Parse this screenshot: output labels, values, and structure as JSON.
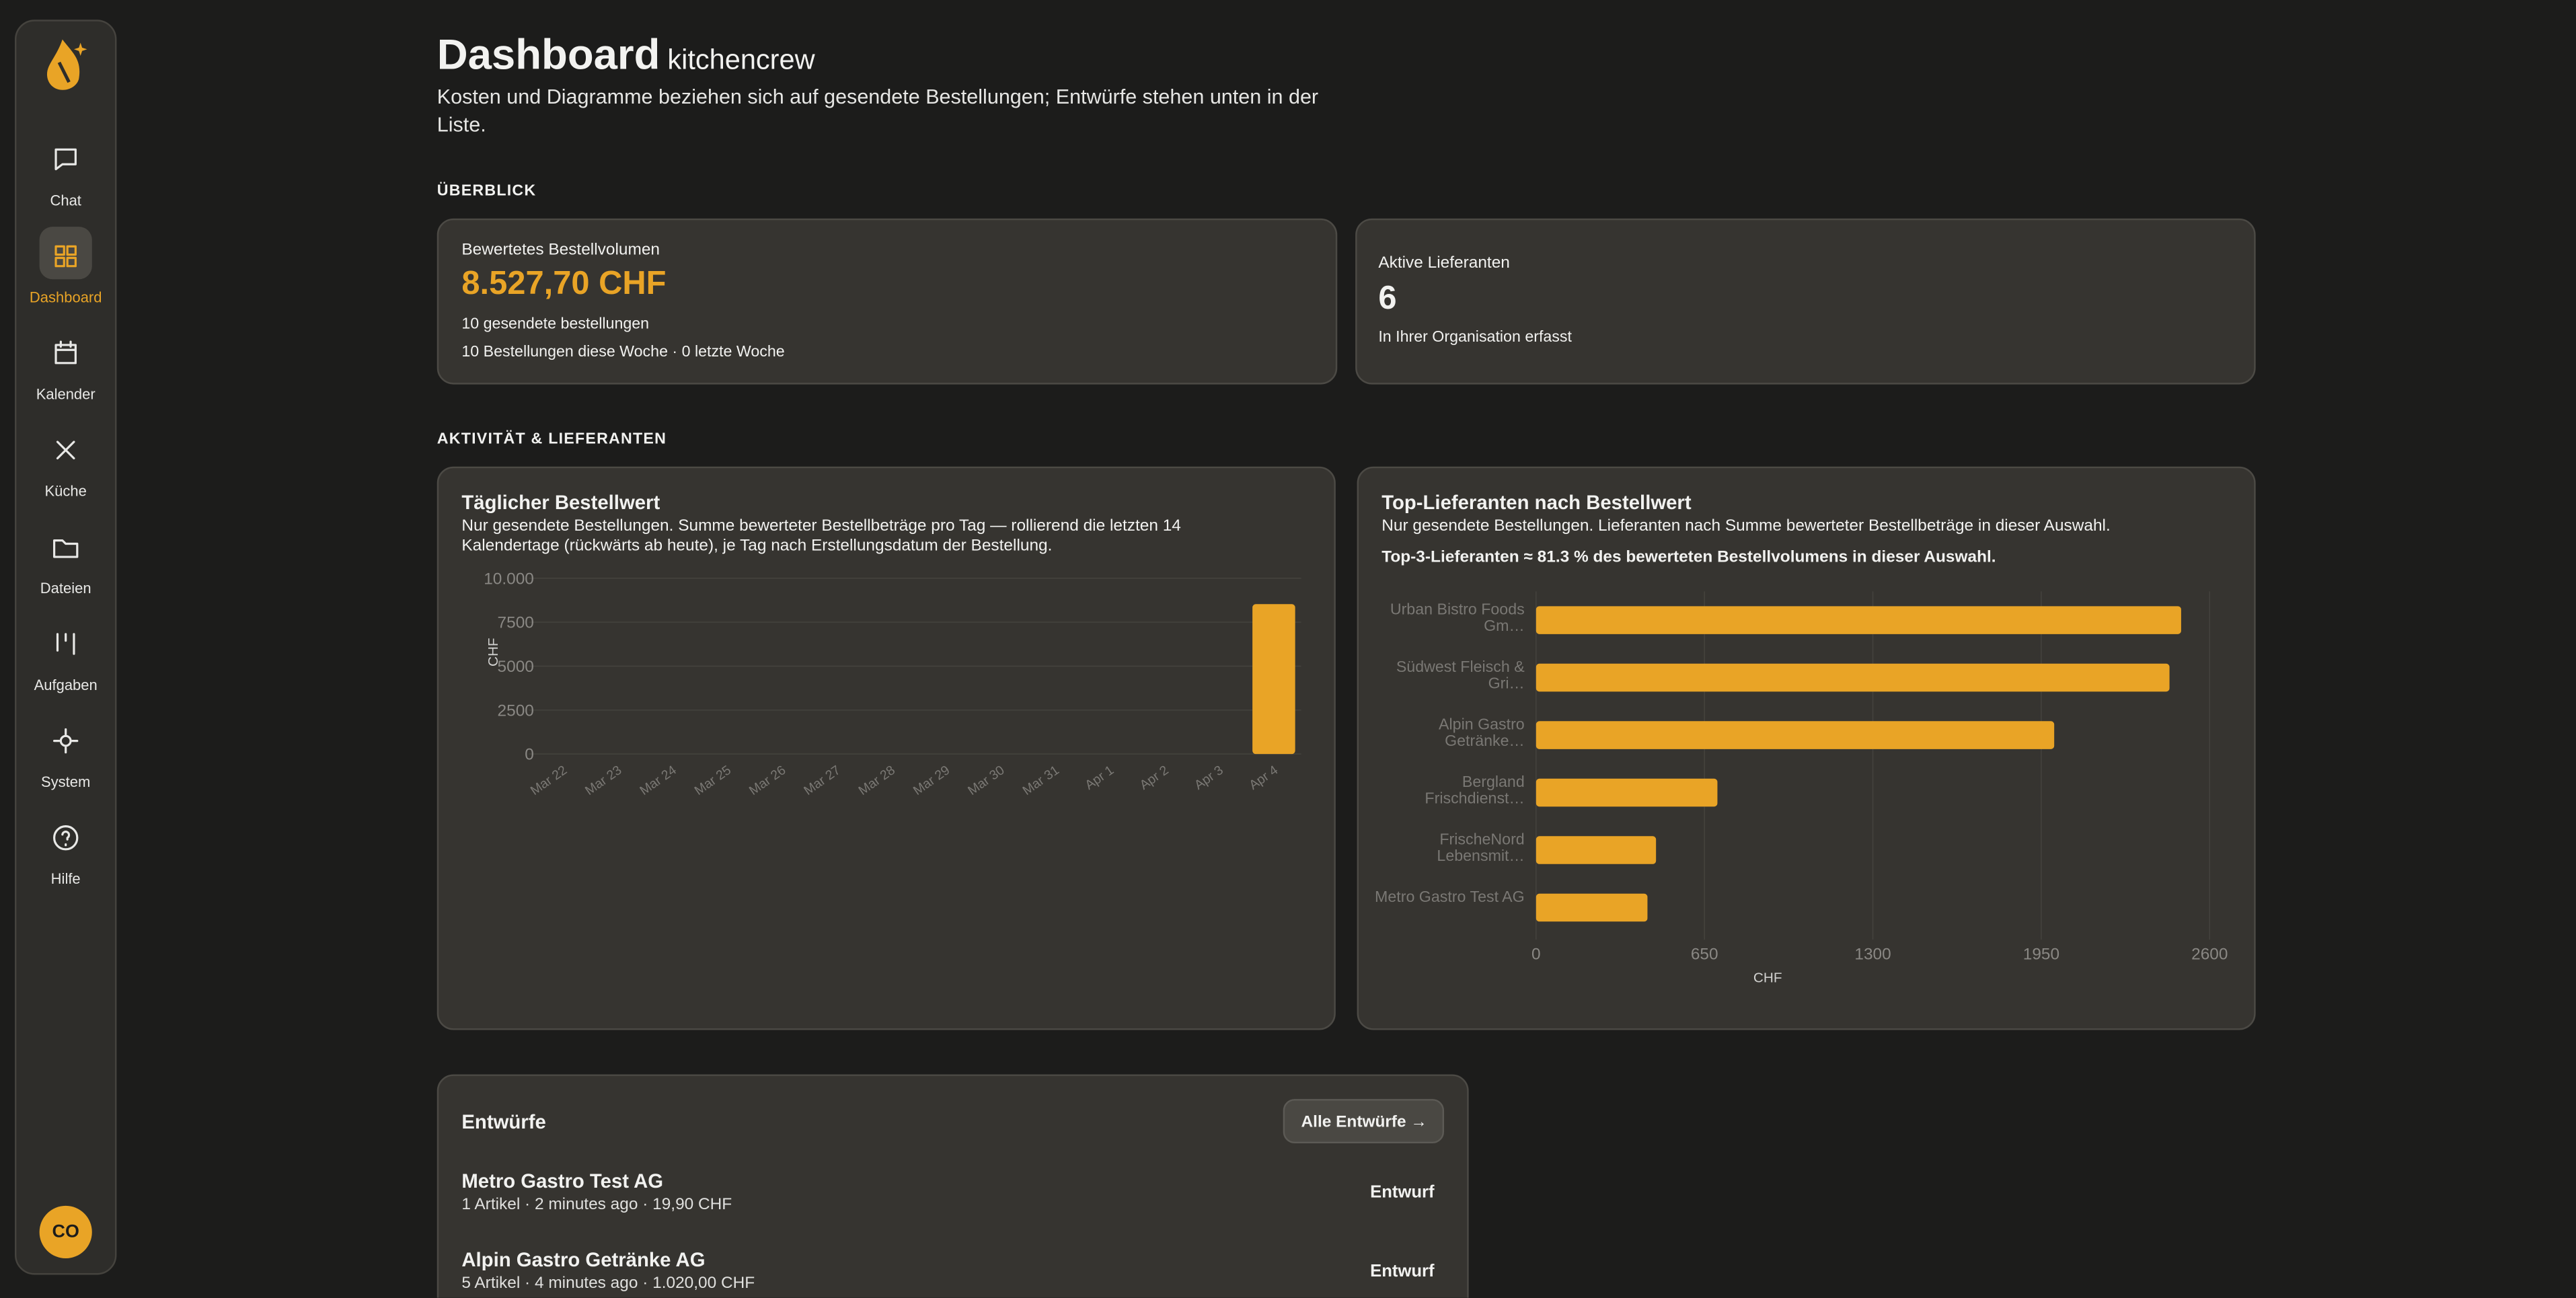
{
  "sidebar": {
    "items": [
      "Chat",
      "Dashboard",
      "Kalender",
      "Küche",
      "Dateien",
      "Aufgaben",
      "System",
      "Hilfe"
    ],
    "active": "Dashboard",
    "avatar": "CO"
  },
  "header": {
    "title": "Dashboard",
    "org": "kitchencrew",
    "subtitle": "Kosten und Diagramme beziehen sich auf gesendete Bestellungen; Entwürfe stehen unten in der Liste."
  },
  "overview": {
    "heading": "ÜBERBLICK",
    "cards": [
      {
        "label": "Bewertetes Bestellvolumen",
        "value": "8.527,70 CHF",
        "lines": [
          "10 gesendete bestellungen",
          "10 Bestellungen diese Woche · 0 letzte Woche"
        ]
      },
      {
        "label": "Aktive Lieferanten",
        "value": "6",
        "lines": [
          "In Ihrer Organisation erfasst"
        ]
      }
    ]
  },
  "activity": {
    "heading": "AKTIVITÄT & LIEFERANTEN"
  },
  "chart_data": [
    {
      "type": "bar",
      "title": "Täglicher Bestellwert",
      "subtitle": "Nur gesendete Bestellungen. Summe bewerteter Bestellbeträge pro Tag — rollierend die letzten 14 Kalendertage (rückwärts ab heute), je Tag nach Erstellungsdatum der Bestellung.",
      "categories": [
        "Mar 22",
        "Mar 23",
        "Mar 24",
        "Mar 25",
        "Mar 26",
        "Mar 27",
        "Mar 28",
        "Mar 29",
        "Mar 30",
        "Mar 31",
        "Apr 1",
        "Apr 2",
        "Apr 3",
        "Apr 4"
      ],
      "values": [
        0,
        0,
        0,
        0,
        0,
        0,
        0,
        0,
        0,
        0,
        0,
        0,
        0,
        8527.7
      ],
      "color": "#e9a426",
      "ylabel": "CHF",
      "ylim": [
        0,
        10000
      ],
      "yticks": [
        0,
        2500,
        5000,
        7500,
        {
          "value": 10000,
          "label": "10.000"
        }
      ],
      "grid": true
    },
    {
      "type": "hbar",
      "title": "Top-Lieferanten nach Bestellwert",
      "subtitle": "Nur gesendete Bestellungen. Lieferanten nach Summe bewerteter Bestellbeträge in dieser Auswahl.",
      "note": "Top-3-Lieferanten ≈ 81.3 % des bewerteten Bestellvolumens in dieser Auswahl.",
      "categories": [
        "Urban Bistro Foods Gm…",
        "Südwest Fleisch & Gri…",
        "Alpin Gastro Getränke…",
        "Bergland Frischdienst…",
        "FrischeNord Lebensmit…",
        "Metro Gastro Test AG"
      ],
      "values": [
        2490,
        2445,
        2000,
        700,
        463,
        430
      ],
      "color": "#e9a426",
      "xlabel": "CHF",
      "xlim": [
        0,
        2600
      ],
      "xticks": [
        0,
        650,
        1300,
        1950,
        2600
      ],
      "grid": true
    }
  ],
  "drafts": {
    "title": "Entwürfe",
    "button": "Alle Entwürfe",
    "rows": [
      {
        "name": "Metro Gastro Test AG",
        "meta": "1 Artikel · 2 minutes ago · 19,90 CHF",
        "status": "Entwurf"
      },
      {
        "name": "Alpin Gastro Getränke AG",
        "meta": "5 Artikel · 4 minutes ago · 1.020,00 CHF",
        "status": "Entwurf"
      }
    ]
  }
}
